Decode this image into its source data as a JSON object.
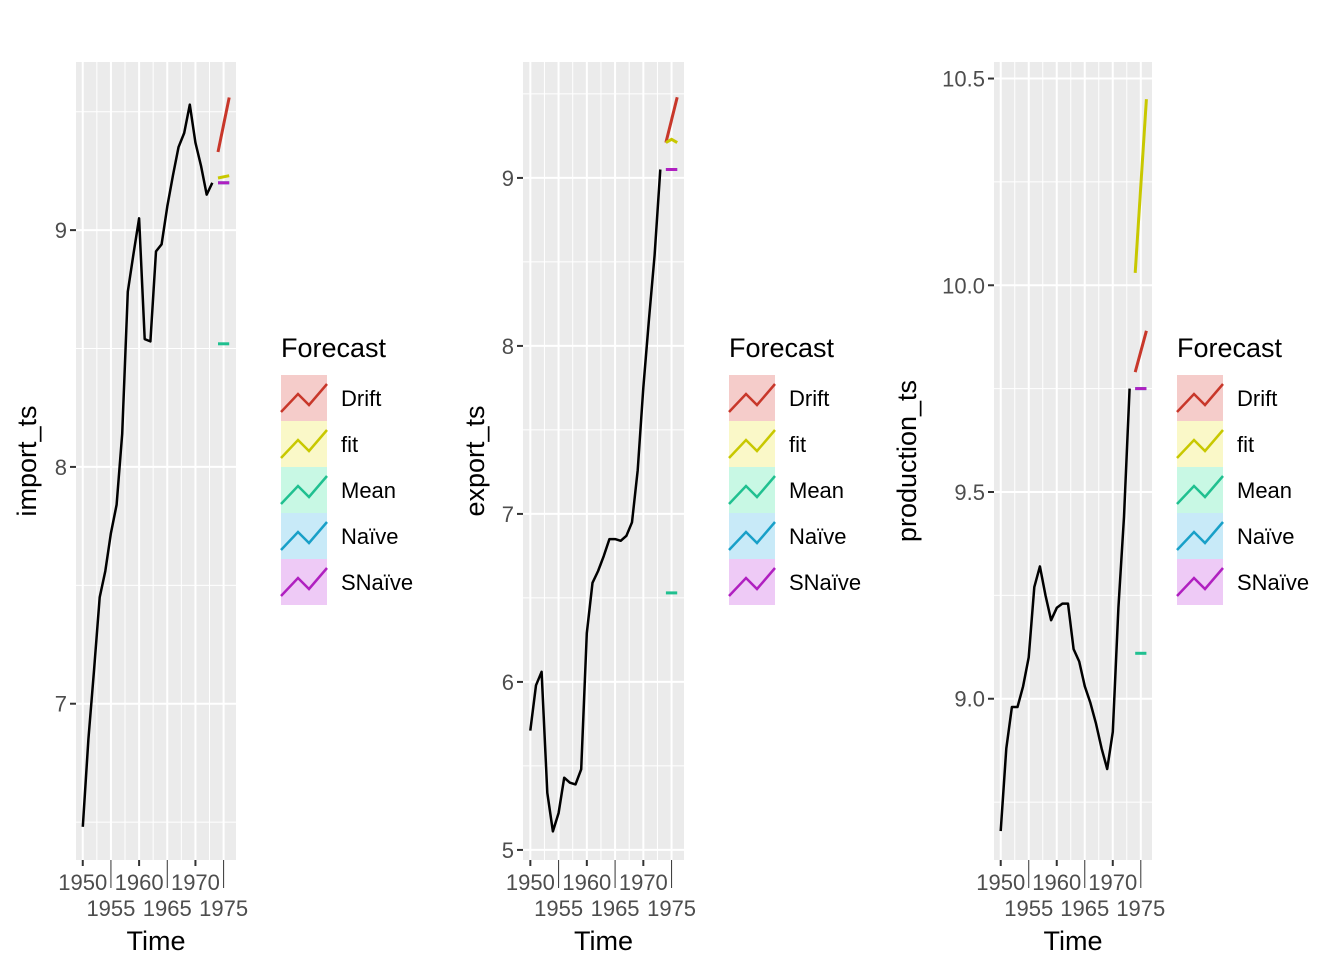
{
  "legend": {
    "title": "Forecast",
    "items": [
      {
        "label": "Drift",
        "color": "#C8372A",
        "fill": "#F5CCCA"
      },
      {
        "label": "fit",
        "color": "#C8C800",
        "fill": "#FAF8C8"
      },
      {
        "label": "Mean",
        "color": "#20C090",
        "fill": "#C8F8E4"
      },
      {
        "label": "Naïve",
        "color": "#18A0C8",
        "fill": "#C8EAF8"
      },
      {
        "label": "SNaïve",
        "color": "#B020C0",
        "fill": "#EECAF6"
      }
    ]
  },
  "chart_data": [
    {
      "type": "line",
      "xlabel": "Time",
      "ylabel": "import_ts",
      "xlim": [
        1948.8,
        1977.2
      ],
      "ylim": [
        6.34,
        9.71
      ],
      "xticks": [
        1950,
        1955,
        1960,
        1965,
        1970,
        1975
      ],
      "yticks": [
        7,
        8,
        9
      ],
      "grid": true,
      "actual": {
        "start": 1950,
        "values": [
          6.48,
          6.85,
          7.14,
          7.45,
          7.56,
          7.72,
          7.84,
          8.14,
          8.74,
          8.9,
          9.05,
          8.54,
          8.53,
          8.91,
          8.94,
          9.1,
          9.23,
          9.35,
          9.41,
          9.53,
          9.37,
          9.27,
          9.15,
          9.2
        ]
      },
      "forecasts": [
        {
          "name": "Drift",
          "x": [
            1974,
            1976
          ],
          "y": [
            9.33,
            9.56
          ]
        },
        {
          "name": "fit",
          "x": [
            1974,
            1976
          ],
          "y": [
            9.22,
            9.23
          ]
        },
        {
          "name": "Mean",
          "x": [
            1974,
            1976
          ],
          "y": [
            8.52,
            8.52
          ]
        },
        {
          "name": "Naïve",
          "x": [
            1974,
            1976
          ],
          "y": [
            9.2,
            9.2
          ]
        },
        {
          "name": "SNaïve",
          "x": [
            1974,
            1976
          ],
          "y": [
            9.2,
            9.2
          ]
        }
      ]
    },
    {
      "type": "line",
      "xlabel": "Time",
      "ylabel": "export_ts",
      "xlim": [
        1948.7,
        1977.2
      ],
      "ylim": [
        4.94,
        9.69
      ],
      "xticks": [
        1950,
        1955,
        1960,
        1965,
        1970,
        1975
      ],
      "yticks": [
        5,
        6,
        7,
        8,
        9
      ],
      "grid": true,
      "actual": {
        "start": 1950,
        "values": [
          5.71,
          5.98,
          6.06,
          5.34,
          5.11,
          5.22,
          5.43,
          5.4,
          5.39,
          5.48,
          6.29,
          6.59,
          6.66,
          6.75,
          6.85,
          6.85,
          6.84,
          6.87,
          6.95,
          7.26,
          7.75,
          8.16,
          8.54,
          9.05
        ]
      },
      "forecasts": [
        {
          "name": "Drift",
          "x": [
            1974,
            1976
          ],
          "y": [
            9.21,
            9.48
          ]
        },
        {
          "name": "fit",
          "x": [
            1974,
            1975,
            1976
          ],
          "y": [
            9.21,
            9.23,
            9.21
          ]
        },
        {
          "name": "Mean",
          "x": [
            1974,
            1976
          ],
          "y": [
            6.53,
            6.53
          ]
        },
        {
          "name": "Naïve",
          "x": [
            1974,
            1976
          ],
          "y": [
            9.05,
            9.05
          ]
        },
        {
          "name": "SNaïve",
          "x": [
            1974,
            1976
          ],
          "y": [
            9.05,
            9.05
          ]
        }
      ]
    },
    {
      "type": "line",
      "xlabel": "Time",
      "ylabel": "production_ts",
      "xlim": [
        1948.8,
        1977.0
      ],
      "ylim": [
        8.61,
        10.54
      ],
      "xticks": [
        1950,
        1955,
        1960,
        1965,
        1970,
        1975
      ],
      "yticks": [
        "9.0",
        "9.5",
        "10.0",
        "10.5"
      ],
      "grid": true,
      "actual": {
        "start": 1950,
        "values": [
          8.68,
          8.88,
          8.98,
          8.98,
          9.03,
          9.1,
          9.27,
          9.32,
          9.25,
          9.19,
          9.22,
          9.23,
          9.23,
          9.12,
          9.09,
          9.03,
          8.99,
          8.94,
          8.88,
          8.83,
          8.92,
          9.22,
          9.44,
          9.75
        ]
      },
      "forecasts": [
        {
          "name": "Drift",
          "x": [
            1974,
            1976
          ],
          "y": [
            9.79,
            9.89
          ]
        },
        {
          "name": "fit",
          "x": [
            1974,
            1976
          ],
          "y": [
            10.03,
            10.45
          ]
        },
        {
          "name": "Mean",
          "x": [
            1974,
            1976
          ],
          "y": [
            9.11,
            9.11
          ]
        },
        {
          "name": "Naïve",
          "x": [
            1974,
            1976
          ],
          "y": [
            9.75,
            9.75
          ]
        },
        {
          "name": "SNaïve",
          "x": [
            1974,
            1976
          ],
          "y": [
            9.75,
            9.75
          ]
        }
      ]
    }
  ]
}
